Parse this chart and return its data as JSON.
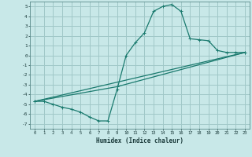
{
  "title": "",
  "xlabel": "Humidex (Indice chaleur)",
  "bg_color": "#c8e8e8",
  "line_color": "#1a7a6e",
  "grid_color": "#a0c8c8",
  "xlim": [
    -0.5,
    23.5
  ],
  "ylim": [
    -7.5,
    5.5
  ],
  "xticks": [
    0,
    1,
    2,
    3,
    4,
    5,
    6,
    7,
    8,
    9,
    10,
    11,
    12,
    13,
    14,
    15,
    16,
    17,
    18,
    19,
    20,
    21,
    22,
    23
  ],
  "yticks": [
    -7,
    -6,
    -5,
    -4,
    -3,
    -2,
    -1,
    0,
    1,
    2,
    3,
    4,
    5
  ],
  "line1_x": [
    0,
    1,
    2,
    3,
    4,
    5,
    6,
    7,
    8,
    9,
    10,
    11,
    12,
    13,
    14,
    15,
    16,
    17,
    18,
    19,
    20,
    21,
    22,
    23
  ],
  "line1_y": [
    -4.7,
    -4.7,
    -5.0,
    -5.3,
    -5.5,
    -5.8,
    -6.3,
    -6.7,
    -6.7,
    -3.5,
    0.0,
    1.3,
    2.3,
    4.5,
    5.0,
    5.2,
    4.5,
    1.7,
    1.6,
    1.5,
    0.5,
    0.3,
    0.3,
    0.3
  ],
  "line2_x": [
    0,
    9,
    23
  ],
  "line2_y": [
    -4.7,
    -3.2,
    0.3
  ],
  "line3_x": [
    0,
    23
  ],
  "line3_y": [
    -4.7,
    0.3
  ],
  "marker": "+"
}
